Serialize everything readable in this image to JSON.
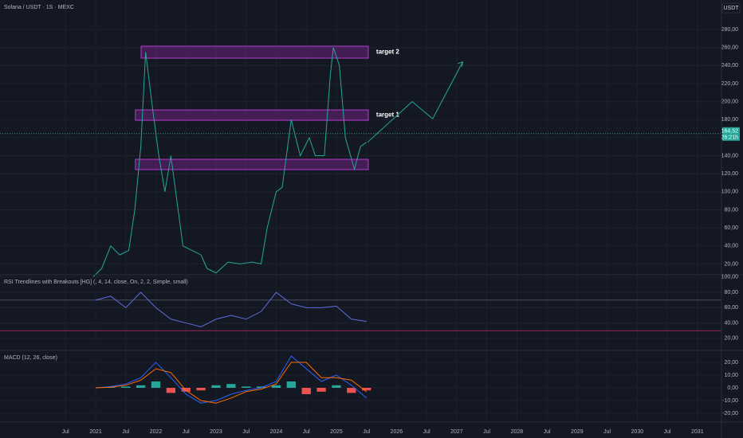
{
  "chart_data": [
    {
      "type": "line",
      "title": "Solana / USDT · 1S · MEXC",
      "unit": "USDT",
      "x": [
        2020.95,
        2021.1,
        2021.25,
        2021.4,
        2021.55,
        2021.65,
        2021.75,
        2021.83,
        2021.95,
        2022.05,
        2022.15,
        2022.25,
        2022.35,
        2022.45,
        2022.6,
        2022.75,
        2022.85,
        2023.0,
        2023.2,
        2023.4,
        2023.6,
        2023.75,
        2023.85,
        2024.0,
        2024.1,
        2024.25,
        2024.4,
        2024.55,
        2024.65,
        2024.8,
        2024.9,
        2024.95,
        2025.05,
        2025.15,
        2025.3,
        2025.4,
        2025.5
      ],
      "series": [
        {
          "color": "#26a69a",
          "values": [
            5,
            15,
            40,
            30,
            35,
            80,
            150,
            255,
            190,
            140,
            100,
            140,
            90,
            40,
            35,
            30,
            15,
            10,
            22,
            20,
            22,
            20,
            60,
            100,
            105,
            180,
            140,
            160,
            140,
            140,
            230,
            260,
            240,
            160,
            125,
            150,
            155
          ]
        }
      ],
      "last_price": {
        "value": 164.52,
        "label": "164,52"
      },
      "countdown": "26:21h",
      "zones": [
        {
          "label": "target 2",
          "top": 261.5,
          "bottom": 248.2,
          "from": 2021.755,
          "to": 2025.53
        },
        {
          "label": "target 1",
          "top": 190.8,
          "bottom": 179.3,
          "from": 2021.66,
          "to": 2025.53
        },
        {
          "top": 136,
          "bottom": 124.6,
          "from": 2021.66,
          "to": 2025.53
        }
      ],
      "projection": {
        "x": [
          2025.52,
          2026.26,
          2026.6,
          2027.1
        ],
        "values": [
          155,
          200,
          181,
          244
        ],
        "color": "#26a69a"
      },
      "xlim": [
        2019.41,
        2031.4
      ],
      "xticks": [
        {
          "value": 2020.5,
          "label": "Jul"
        },
        2021,
        {
          "value": 2021.5,
          "label": "Jul"
        },
        2022,
        {
          "value": 2022.5,
          "label": "Jul"
        },
        2023,
        {
          "value": 2023.5,
          "label": "Jul"
        },
        2024,
        {
          "value": 2024.5,
          "label": "Jul"
        },
        2025,
        {
          "value": 2025.5,
          "label": "Jul"
        },
        2026,
        {
          "value": 2026.5,
          "label": "Jul"
        },
        2027,
        {
          "value": 2027.5,
          "label": "Jul"
        },
        2028,
        {
          "value": 2028.5,
          "label": "Jul"
        },
        2029,
        {
          "value": 2029.5,
          "label": "Jul"
        },
        2030,
        {
          "value": 2030.5,
          "label": "Jul"
        },
        2031
      ],
      "ylim": [
        8.0,
        312.7
      ],
      "yticks": [
        {
          "value": 20,
          "label": "20,00"
        },
        {
          "value": 40,
          "label": "40,00"
        },
        {
          "value": 60,
          "label": "60,00"
        },
        {
          "value": 80,
          "label": "80,00"
        },
        {
          "value": 100,
          "label": "100,00"
        },
        {
          "value": 120,
          "label": "120,00"
        },
        {
          "value": 140,
          "label": "140,00"
        },
        {
          "value": 160,
          "label": "160,00"
        },
        {
          "value": 180,
          "label": "180,00"
        },
        {
          "value": 200,
          "label": "200,00"
        },
        {
          "value": 220,
          "label": "220,00"
        },
        {
          "value": 240,
          "label": "240,00"
        },
        {
          "value": 260,
          "label": "260,00"
        },
        {
          "value": 280,
          "label": "280,00"
        }
      ],
      "grid": true
    },
    {
      "type": "line",
      "title": "RSI Trendlines with Breakouts [HG] (, 4, 14, close, On, 2, 2, Simple, small)",
      "x": [
        2021,
        2021.25,
        2021.5,
        2021.75,
        2022,
        2022.25,
        2022.5,
        2022.75,
        2023,
        2023.25,
        2023.5,
        2023.75,
        2024,
        2024.25,
        2024.5,
        2024.75,
        2025,
        2025.25,
        2025.5
      ],
      "series": [
        {
          "color": "#5b6ee1",
          "values": [
            70,
            75,
            60,
            80,
            60,
            45,
            40,
            35,
            45,
            50,
            45,
            55,
            80,
            65,
            60,
            60,
            62,
            45,
            42
          ]
        }
      ],
      "levels": [
        {
          "value": 70,
          "color": "#4a4e5a"
        },
        {
          "value": 30,
          "color": "#9c2760"
        }
      ],
      "ylim": [
        4.2,
        103
      ],
      "yticks": [
        {
          "value": 20,
          "label": "20,00"
        },
        {
          "value": 40,
          "label": "40,00"
        },
        {
          "value": 60,
          "label": "60,00"
        },
        {
          "value": 80,
          "label": "80,00"
        },
        {
          "value": 100,
          "label": "100,00"
        }
      ],
      "grid": true
    },
    {
      "type": "bar",
      "title": "MACD (12, 26, close)",
      "x": [
        2021,
        2021.25,
        2021.5,
        2021.75,
        2022,
        2022.25,
        2022.5,
        2022.75,
        2023,
        2023.25,
        2023.5,
        2023.75,
        2024,
        2024.25,
        2024.5,
        2024.75,
        2025,
        2025.25,
        2025.5
      ],
      "values": [
        0,
        0.5,
        1,
        2,
        5,
        -4,
        -3,
        -2,
        2,
        3,
        1,
        1,
        2,
        5,
        -5,
        -3,
        2,
        -4,
        -2
      ],
      "up_color": "#26a69a",
      "down_color": "#ef5350",
      "series": [
        {
          "color": "#2962ff",
          "values": [
            0,
            1,
            3,
            8,
            20,
            8,
            -5,
            -12,
            -10,
            -5,
            -2,
            0,
            5,
            25,
            15,
            5,
            10,
            2,
            -8
          ]
        },
        {
          "color": "#ff6d00",
          "values": [
            0,
            0.5,
            2,
            6,
            15,
            12,
            -2,
            -10,
            -12,
            -8,
            -3,
            -1,
            3,
            20,
            20,
            8,
            8,
            6,
            -3
          ]
        }
      ],
      "ylim": [
        -26.9,
        29.4
      ],
      "yticks": [
        {
          "value": -20,
          "label": "-20,00"
        },
        {
          "value": -10,
          "label": "-10,00"
        },
        {
          "value": 0,
          "label": "0,00"
        },
        {
          "value": 10,
          "label": "10,00"
        },
        {
          "value": 20,
          "label": "20,00"
        }
      ],
      "grid": true
    }
  ]
}
